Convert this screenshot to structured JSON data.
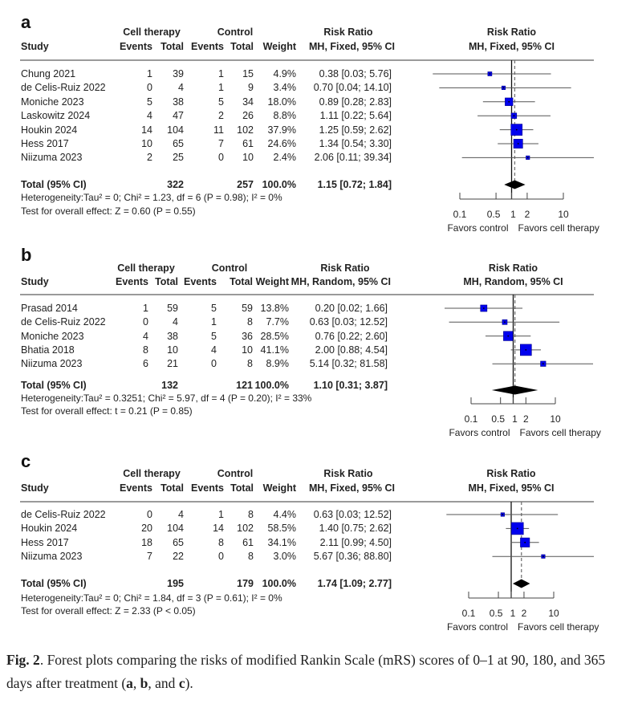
{
  "chart_data": [
    {
      "type": "forest",
      "panel_label": "a",
      "headers": {
        "study": "Study",
        "cell_therapy": "Cell therapy",
        "control": "Control",
        "events": "Events",
        "total": "Total",
        "weight": "Weight",
        "risk_ratio": "Risk Ratio",
        "method": "MH, Fixed, 95% CI"
      },
      "studies": [
        {
          "study": "Chung 2021",
          "ct_events": "1",
          "ct_total": "39",
          "c_events": "1",
          "c_total": "15",
          "weight": "4.9%",
          "ci_text": "0.38 [0.03; 5.76]",
          "rr": 0.38,
          "lower": 0.03,
          "upper": 5.76
        },
        {
          "study": "de Celis-Ruiz 2022",
          "ct_events": "0",
          "ct_total": "4",
          "c_events": "1",
          "c_total": "9",
          "weight": "3.4%",
          "ci_text": "0.70 [0.04; 14.10]",
          "rr": 0.7,
          "lower": 0.04,
          "upper": 14.1
        },
        {
          "study": "Moniche 2023",
          "ct_events": "5",
          "ct_total": "38",
          "c_events": "5",
          "c_total": "34",
          "weight": "18.0%",
          "ci_text": "0.89 [0.28; 2.83]",
          "rr": 0.89,
          "lower": 0.28,
          "upper": 2.83
        },
        {
          "study": "Laskowitz 2024",
          "ct_events": "4",
          "ct_total": "47",
          "c_events": "2",
          "c_total": "26",
          "weight": "8.8%",
          "ci_text": "1.11 [0.22; 5.64]",
          "rr": 1.11,
          "lower": 0.22,
          "upper": 5.64
        },
        {
          "study": "Houkin 2024",
          "ct_events": "14",
          "ct_total": "104",
          "c_events": "11",
          "c_total": "102",
          "weight": "37.9%",
          "ci_text": "1.25 [0.59; 2.62]",
          "rr": 1.25,
          "lower": 0.59,
          "upper": 2.62
        },
        {
          "study": "Hess 2017",
          "ct_events": "10",
          "ct_total": "65",
          "c_events": "7",
          "c_total": "61",
          "weight": "24.6%",
          "ci_text": "1.34 [0.54; 3.30]",
          "rr": 1.34,
          "lower": 0.54,
          "upper": 3.3
        },
        {
          "study": "Niizuma 2023",
          "ct_events": "2",
          "ct_total": "25",
          "c_events": "0",
          "c_total": "10",
          "weight": "2.4%",
          "ci_text": "2.06 [0.11; 39.34]",
          "rr": 2.06,
          "lower": 0.11,
          "upper": 39.34
        }
      ],
      "total": {
        "label": "Total (95% CI)",
        "ct_total": "322",
        "c_total": "257",
        "weight": "100.0%",
        "ci_text": "1.15 [0.72; 1.84]",
        "rr": 1.15,
        "lower": 0.72,
        "upper": 1.84
      },
      "heterogeneity": "Heterogeneity:Tau² = 0; Chi² = 1.23, df = 6 (P = 0.98); I² = 0%",
      "overall_effect": "Test for overall effect: Z = 0.60 (P = 0.55)",
      "x_scale": "log",
      "x_ticks": [
        0.1,
        0.5,
        1,
        2,
        10
      ],
      "x_tick_labels": [
        "0.1",
        "0.5",
        "1",
        "2",
        "10"
      ],
      "favors_left": "Favors control",
      "favors_right": "Favors cell therapy",
      "marker_color": "#0000ee"
    },
    {
      "type": "forest",
      "panel_label": "b",
      "headers": {
        "study": "Study",
        "cell_therapy": "Cell therapy",
        "control": "Control",
        "events": "Events",
        "total": "Total",
        "weight": "Weight",
        "risk_ratio": "Risk Ratio",
        "method": "MH, Random, 95% CI"
      },
      "studies": [
        {
          "study": "Prasad 2014",
          "ct_events": "1",
          "ct_total": "59",
          "c_events": "5",
          "c_total": "59",
          "weight": "13.8%",
          "ci_text": "0.20 [0.02; 1.66]",
          "rr": 0.2,
          "lower": 0.02,
          "upper": 1.66
        },
        {
          "study": "de Celis-Ruiz 2022",
          "ct_events": "0",
          "ct_total": "4",
          "c_events": "1",
          "c_total": "8",
          "weight": "7.7%",
          "ci_text": "0.63 [0.03; 12.52]",
          "rr": 0.63,
          "lower": 0.03,
          "upper": 12.52
        },
        {
          "study": "Moniche 2023",
          "ct_events": "4",
          "ct_total": "38",
          "c_events": "5",
          "c_total": "36",
          "weight": "28.5%",
          "ci_text": "0.76 [0.22; 2.60]",
          "rr": 0.76,
          "lower": 0.22,
          "upper": 2.6
        },
        {
          "study": "Bhatia 2018",
          "ct_events": "8",
          "ct_total": "10",
          "c_events": "4",
          "c_total": "10",
          "weight": "41.1%",
          "ci_text": "2.00 [0.88; 4.54]",
          "rr": 2.0,
          "lower": 0.88,
          "upper": 4.54
        },
        {
          "study": "Niizuma 2023",
          "ct_events": "6",
          "ct_total": "21",
          "c_events": "0",
          "c_total": "8",
          "weight": "8.9%",
          "ci_text": "5.14 [0.32; 81.58]",
          "rr": 5.14,
          "lower": 0.32,
          "upper": 81.58
        }
      ],
      "total": {
        "label": "Total (95% CI)",
        "ct_total": "132",
        "c_total": "121",
        "weight": "100.0%",
        "ci_text": "1.10 [0.31; 3.87]",
        "rr": 1.1,
        "lower": 0.31,
        "upper": 3.87
      },
      "heterogeneity": "Heterogeneity:Tau² = 0.3251; Chi² = 5.97, df = 4 (P = 0.20); I² = 33%",
      "overall_effect": "Test for overall effect: t = 0.21 (P = 0.85)",
      "x_scale": "log",
      "x_ticks": [
        0.1,
        0.5,
        1,
        2,
        10
      ],
      "x_tick_labels": [
        "0.1",
        "0.5",
        "1",
        "2",
        "10"
      ],
      "favors_left": "Favors control",
      "favors_right": "Favors cell therapy",
      "marker_color": "#0000ee"
    },
    {
      "type": "forest",
      "panel_label": "c",
      "headers": {
        "study": "Study",
        "cell_therapy": "Cell therapy",
        "control": "Control",
        "events": "Events",
        "total": "Total",
        "weight": "Weight",
        "risk_ratio": "Risk Ratio",
        "method": "MH, Fixed, 95% CI"
      },
      "studies": [
        {
          "study": "de Celis-Ruiz 2022",
          "ct_events": "0",
          "ct_total": "4",
          "c_events": "1",
          "c_total": "8",
          "weight": "4.4%",
          "ci_text": "0.63 [0.03; 12.52]",
          "rr": 0.63,
          "lower": 0.03,
          "upper": 12.52
        },
        {
          "study": "Houkin 2024",
          "ct_events": "20",
          "ct_total": "104",
          "c_events": "14",
          "c_total": "102",
          "weight": "58.5%",
          "ci_text": "1.40 [0.75; 2.62]",
          "rr": 1.4,
          "lower": 0.75,
          "upper": 2.62
        },
        {
          "study": "Hess 2017",
          "ct_events": "18",
          "ct_total": "65",
          "c_events": "8",
          "c_total": "61",
          "weight": "34.1%",
          "ci_text": "2.11 [0.99; 4.50]",
          "rr": 2.11,
          "lower": 0.99,
          "upper": 4.5
        },
        {
          "study": "Niizuma 2023",
          "ct_events": "7",
          "ct_total": "22",
          "c_events": "0",
          "c_total": "8",
          "weight": "3.0%",
          "ci_text": "5.67 [0.36; 88.80]",
          "rr": 5.67,
          "lower": 0.36,
          "upper": 88.8
        }
      ],
      "total": {
        "label": "Total (95% CI)",
        "ct_total": "195",
        "c_total": "179",
        "weight": "100.0%",
        "ci_text": "1.74 [1.09; 2.77]",
        "rr": 1.74,
        "lower": 1.09,
        "upper": 2.77
      },
      "heterogeneity": "Heterogeneity:Tau² = 0; Chi² = 1.84, df = 3 (P = 0.61); I² = 0%",
      "overall_effect": "Test for overall effect: Z = 2.33 (P < 0.05)",
      "x_scale": "log",
      "x_ticks": [
        0.1,
        0.5,
        1,
        2,
        10
      ],
      "x_tick_labels": [
        "0.1",
        "0.5",
        "1",
        "2",
        "10"
      ],
      "favors_left": "Favors control",
      "favors_right": "Favors cell therapy",
      "marker_color": "#0000ee"
    }
  ],
  "caption": {
    "fig_label": "Fig. 2",
    "text_1": ". Forest plots comparing the risks of modified Rankin Scale (mRS) scores of 0–1 at 90, 180, and 365 days after treatment (",
    "a": "a",
    "sep_1": ", ",
    "b": "b",
    "sep_2": ", and ",
    "c": "c",
    "text_2": ")."
  }
}
